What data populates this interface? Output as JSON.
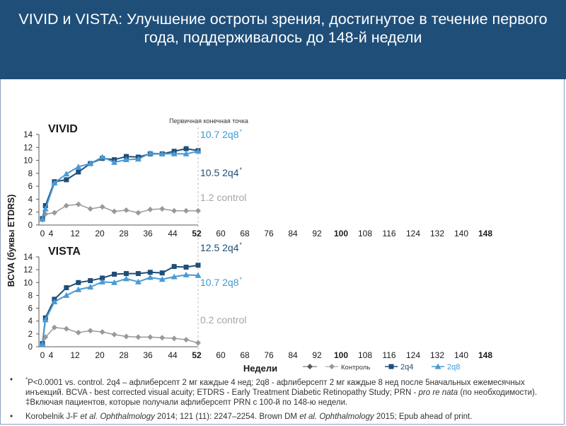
{
  "title": "VIVID и VISTA: Улучшение остроты зрения, достигнутое в течение первого года, поддерживалось до 148-й недели",
  "primary_endpoint_label": "Первичная конечная точка",
  "colors": {
    "header_bg": "#1f4e79",
    "control": "#999999",
    "q4": "#1f4e79",
    "q8": "#4a9ad4",
    "q8_label": "#3d9ad1",
    "q4_label": "#1f4e79",
    "control_label": "#a6a6a6"
  },
  "chart_data": [
    {
      "type": "line",
      "title": "VIVID",
      "ylabel": "BCVA (буквы ETDRS)",
      "xlabel": "Недели",
      "ylim": [
        0,
        14
      ],
      "yticks": [
        "0",
        "2",
        "4",
        "6",
        "8",
        "10",
        "12",
        "14"
      ],
      "xticks": [
        "0",
        "4",
        "12",
        "20",
        "28",
        "36",
        "44",
        "52",
        "60",
        "68",
        "76",
        "84",
        "92",
        "100",
        "108",
        "116",
        "124",
        "132",
        "140",
        "148"
      ],
      "x": [
        0,
        1,
        4,
        8,
        12,
        16,
        20,
        24,
        28,
        32,
        36,
        40,
        44,
        48,
        52
      ],
      "series": [
        {
          "name": "Контроль",
          "values": [
            0.8,
            1.7,
            1.9,
            3.0,
            3.2,
            2.5,
            2.8,
            2.1,
            2.3,
            1.9,
            2.4,
            2.5,
            2.2,
            2.2,
            2.2
          ]
        },
        {
          "name": "2q4",
          "values": [
            1.0,
            3.0,
            6.7,
            7.0,
            8.2,
            9.5,
            10.3,
            10.1,
            10.6,
            10.5,
            11.0,
            11.0,
            11.4,
            11.8,
            11.5
          ]
        },
        {
          "name": "2q8",
          "values": [
            0.9,
            2.5,
            6.5,
            7.9,
            9.0,
            9.5,
            10.5,
            9.7,
            10.1,
            10.2,
            11.1,
            11.0,
            11.0,
            11.0,
            11.4
          ]
        }
      ],
      "end_labels": [
        {
          "text": "10.7 2q8",
          "mark": "*"
        },
        {
          "text": "10.5 2q4",
          "mark": "*"
        },
        {
          "text": "1.2 control",
          "mark": ""
        }
      ]
    },
    {
      "type": "line",
      "title": "VISTA",
      "ylabel": "BCVA (буквы ETDRS)",
      "xlabel": "Недели",
      "ylim": [
        0,
        14
      ],
      "yticks": [
        "0",
        "2",
        "4",
        "6",
        "8",
        "10",
        "12",
        "14"
      ],
      "xticks": [
        "0",
        "4",
        "12",
        "20",
        "28",
        "36",
        "44",
        "52",
        "60",
        "68",
        "76",
        "84",
        "92",
        "100",
        "108",
        "116",
        "124",
        "132",
        "140",
        "148"
      ],
      "x": [
        0,
        1,
        4,
        8,
        12,
        16,
        20,
        24,
        28,
        32,
        36,
        40,
        44,
        48,
        52
      ],
      "series": [
        {
          "name": "Контроль",
          "values": [
            0.3,
            1.5,
            3.0,
            2.8,
            2.2,
            2.5,
            2.3,
            1.9,
            1.6,
            1.5,
            1.5,
            1.4,
            1.3,
            1.1,
            0.6
          ]
        },
        {
          "name": "2q4",
          "values": [
            0.5,
            4.5,
            7.4,
            9.2,
            10.0,
            10.3,
            10.7,
            11.3,
            11.4,
            11.4,
            11.6,
            11.5,
            12.5,
            12.4,
            12.7
          ]
        },
        {
          "name": "2q8",
          "values": [
            0.4,
            4.2,
            7.0,
            8.0,
            8.9,
            9.3,
            10.1,
            10.0,
            10.6,
            10.1,
            10.8,
            10.5,
            10.9,
            11.2,
            11.1
          ]
        }
      ],
      "end_labels": [
        {
          "text": "12.5 2q4",
          "mark": "*"
        },
        {
          "text": "10.7 2q8",
          "mark": "*"
        },
        {
          "text": "0.2 control",
          "mark": ""
        }
      ]
    }
  ],
  "legend": [
    {
      "name": "",
      "marker": "diamond-dark"
    },
    {
      "name": "Контроль",
      "marker": "diamond"
    },
    {
      "name": "2q4",
      "marker": "square"
    },
    {
      "name": "2q8",
      "marker": "triangle"
    }
  ],
  "footnotes": {
    "bullet": "•",
    "fn1_mark": "*",
    "fn1_a": "P<0.0001 vs. control. 2q4 – афлиберсепт 2 мг каждые 4 нед; 2q8 - афлиберсепт 2 мг каждые 8 нед после 5начальных ежемесячных инъекций. BCVA - best corrected visual acuity; ETDRS - Early Treatment Diabetic Retinopathy Study; PRN - ",
    "fn1_em": "pro re nata",
    "fn1_b": " (по необходимости). ‡Включая пациентов, которые получали афлиберсепт PRN с 100-й по 148-ю недели.",
    "fn2_a": "Korobelnik J-F ",
    "fn2_em1": "et al. Ophthalmology",
    "fn2_b": " 2014; 121 (11): 2247–2254. Brown DM ",
    "fn2_em2": "et al. Ophthalmology",
    "fn2_c": " 2015; Epub ahead of print."
  }
}
